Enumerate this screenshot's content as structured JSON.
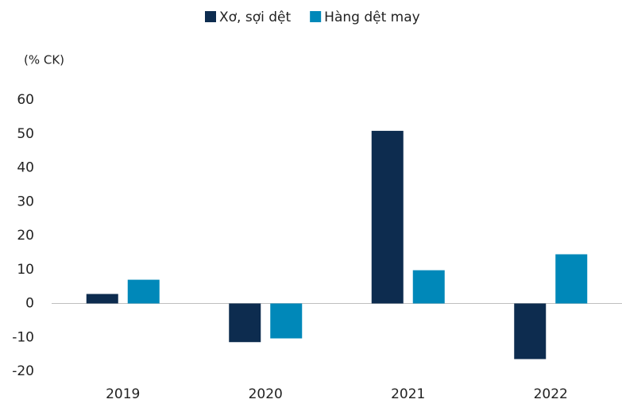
{
  "chart_data": {
    "type": "bar",
    "y_axis_label": "(% CK)",
    "categories": [
      "2019",
      "2020",
      "2021",
      "2022"
    ],
    "series": [
      {
        "name": "Xơ, sợi dệt",
        "color": "#0d2c4f",
        "values": [
          2.8,
          -11.4,
          50.9,
          -16.4
        ]
      },
      {
        "name": "Hàng dệt may",
        "color": "#0088b9",
        "values": [
          7.0,
          -10.3,
          9.8,
          14.5
        ]
      }
    ],
    "ylim": [
      -20,
      60
    ],
    "yticks": [
      -20,
      -10,
      0,
      10,
      20,
      30,
      40,
      50,
      60
    ],
    "grid": false,
    "legend": "top"
  }
}
